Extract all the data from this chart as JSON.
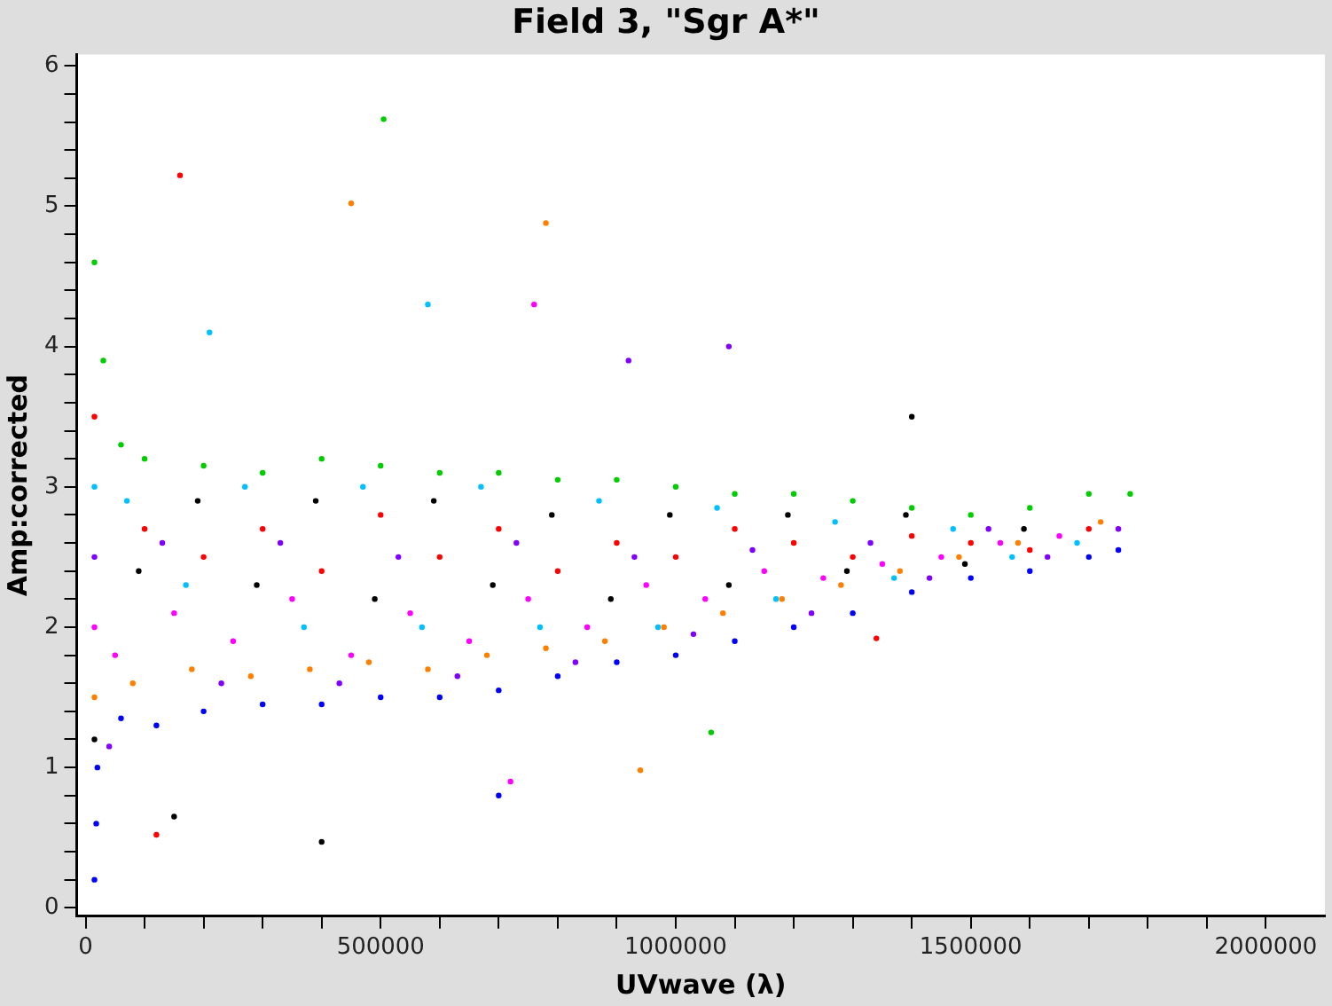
{
  "chart_data": {
    "type": "scatter",
    "title": "Field 3, \"Sgr A*\"",
    "xlabel": "UVwave (λ)",
    "ylabel": "Amp:corrected",
    "xlim": [
      -15000,
      2100000
    ],
    "xticks": [
      0,
      {
        "value": 100000,
        "label": null
      },
      {
        "value": 200000,
        "label": null
      },
      {
        "value": 300000,
        "label": null
      },
      {
        "value": 400000,
        "label": null
      },
      500000,
      {
        "value": 600000,
        "label": null
      },
      {
        "value": 700000,
        "label": null
      },
      {
        "value": 800000,
        "label": null
      },
      {
        "value": 900000,
        "label": null
      },
      1000000,
      {
        "value": 1100000,
        "label": null
      },
      {
        "value": 1200000,
        "label": null
      },
      {
        "value": 1300000,
        "label": null
      },
      {
        "value": 1400000,
        "label": null
      },
      1500000,
      {
        "value": 1600000,
        "label": null
      },
      {
        "value": 1700000,
        "label": null
      },
      {
        "value": 1800000,
        "label": null
      },
      {
        "value": 1900000,
        "label": null
      },
      2000000
    ],
    "ylim": [
      -0.06,
      6.08
    ],
    "yticks": [
      0,
      {
        "value": 0.2,
        "label": null
      },
      {
        "value": 0.4,
        "label": null
      },
      {
        "value": 0.6,
        "label": null
      },
      {
        "value": 0.8,
        "label": null
      },
      1,
      {
        "value": 1.2,
        "label": null
      },
      {
        "value": 1.4,
        "label": null
      },
      {
        "value": 1.6,
        "label": null
      },
      {
        "value": 1.8,
        "label": null
      },
      2,
      {
        "value": 2.2,
        "label": null
      },
      {
        "value": 2.4,
        "label": null
      },
      {
        "value": 2.6,
        "label": null
      },
      {
        "value": 2.8,
        "label": null
      },
      3,
      {
        "value": 3.2,
        "label": null
      },
      {
        "value": 3.4,
        "label": null
      },
      {
        "value": 3.6,
        "label": null
      },
      {
        "value": 3.8,
        "label": null
      },
      4,
      {
        "value": 4.2,
        "label": null
      },
      {
        "value": 4.4,
        "label": null
      },
      {
        "value": 4.6,
        "label": null
      },
      {
        "value": 4.8,
        "label": null
      },
      5,
      {
        "value": 5.2,
        "label": null
      },
      {
        "value": 5.4,
        "label": null
      },
      {
        "value": 5.6,
        "label": null
      },
      {
        "value": 5.8,
        "label": null
      },
      6
    ],
    "grid": false,
    "legend": false,
    "marker": "circle",
    "series": [
      {
        "color": "#0000ff",
        "x": [
          15000,
          18000,
          20000,
          60000,
          120000,
          200000,
          300000,
          400000,
          500000,
          600000,
          700000,
          800000,
          900000,
          1000000,
          1100000,
          1200000,
          1300000,
          1400000,
          1500000,
          1600000,
          1700000,
          1750000,
          700000
        ],
        "values": [
          0.2,
          0.6,
          1.0,
          1.35,
          1.3,
          1.4,
          1.45,
          1.45,
          1.5,
          1.5,
          1.55,
          1.65,
          1.75,
          1.8,
          1.9,
          2.0,
          2.1,
          2.25,
          2.35,
          2.4,
          2.5,
          2.55,
          0.8
        ]
      },
      {
        "color": "#00cc00",
        "x": [
          15000,
          30000,
          60000,
          100000,
          200000,
          300000,
          400000,
          500000,
          600000,
          700000,
          800000,
          900000,
          1000000,
          1100000,
          1200000,
          1300000,
          1400000,
          1500000,
          1600000,
          1700000,
          1770000,
          505000,
          1060000
        ],
        "values": [
          4.6,
          3.9,
          3.3,
          3.2,
          3.15,
          3.1,
          3.2,
          3.15,
          3.1,
          3.1,
          3.05,
          3.05,
          3.0,
          2.95,
          2.95,
          2.9,
          2.85,
          2.8,
          2.85,
          2.95,
          2.95,
          5.62,
          1.25
        ]
      },
      {
        "color": "#ff0000",
        "x": [
          15000,
          100000,
          200000,
          300000,
          400000,
          500000,
          600000,
          700000,
          800000,
          900000,
          1000000,
          1100000,
          1200000,
          1300000,
          1400000,
          1500000,
          1600000,
          1700000,
          160000,
          120000,
          1340000
        ],
        "values": [
          3.5,
          2.7,
          2.5,
          2.7,
          2.4,
          2.8,
          2.5,
          2.7,
          2.4,
          2.6,
          2.5,
          2.7,
          2.6,
          2.5,
          2.65,
          2.6,
          2.55,
          2.7,
          5.22,
          0.52,
          1.92
        ]
      },
      {
        "color": "#ff00ff",
        "x": [
          15000,
          50000,
          150000,
          250000,
          350000,
          450000,
          550000,
          650000,
          750000,
          850000,
          950000,
          1050000,
          1150000,
          1250000,
          1350000,
          1450000,
          1550000,
          1650000,
          760000,
          720000
        ],
        "values": [
          2.0,
          1.8,
          2.1,
          1.9,
          2.2,
          1.8,
          2.1,
          1.9,
          2.2,
          2.0,
          2.3,
          2.2,
          2.4,
          2.35,
          2.45,
          2.5,
          2.6,
          2.65,
          4.3,
          0.9
        ]
      },
      {
        "color": "#ff8000",
        "x": [
          15000,
          80000,
          180000,
          280000,
          380000,
          480000,
          580000,
          680000,
          780000,
          880000,
          980000,
          1080000,
          1180000,
          1280000,
          1380000,
          1480000,
          1580000,
          1720000,
          450000,
          780000,
          940000
        ],
        "values": [
          1.5,
          1.6,
          1.7,
          1.65,
          1.7,
          1.75,
          1.7,
          1.8,
          1.85,
          1.9,
          2.0,
          2.1,
          2.2,
          2.3,
          2.4,
          2.5,
          2.6,
          2.75,
          5.02,
          4.88,
          0.98
        ]
      },
      {
        "color": "#000000",
        "x": [
          15000,
          90000,
          190000,
          290000,
          390000,
          490000,
          590000,
          690000,
          790000,
          890000,
          990000,
          1090000,
          1190000,
          1290000,
          1390000,
          1490000,
          1590000,
          400000,
          150000,
          1400000
        ],
        "values": [
          1.2,
          2.4,
          2.9,
          2.3,
          2.9,
          2.2,
          2.9,
          2.3,
          2.8,
          2.2,
          2.8,
          2.3,
          2.8,
          2.4,
          2.8,
          2.45,
          2.7,
          0.47,
          0.65,
          3.5
        ]
      },
      {
        "color": "#00c0ff",
        "x": [
          15000,
          70000,
          170000,
          270000,
          370000,
          470000,
          570000,
          670000,
          770000,
          870000,
          970000,
          1070000,
          1170000,
          1270000,
          1370000,
          1470000,
          1570000,
          1680000,
          210000,
          580000
        ],
        "values": [
          3.0,
          2.9,
          2.3,
          3.0,
          2.0,
          3.0,
          2.0,
          3.0,
          2.0,
          2.9,
          2.0,
          2.85,
          2.2,
          2.75,
          2.35,
          2.7,
          2.5,
          2.6,
          4.1,
          4.3
        ]
      },
      {
        "color": "#8000ff",
        "x": [
          15000,
          40000,
          130000,
          230000,
          330000,
          430000,
          530000,
          630000,
          730000,
          830000,
          930000,
          1030000,
          1130000,
          1230000,
          1330000,
          1430000,
          1530000,
          1630000,
          1750000,
          1090000,
          920000
        ],
        "values": [
          2.5,
          1.15,
          2.6,
          1.6,
          2.6,
          1.6,
          2.5,
          1.65,
          2.6,
          1.75,
          2.5,
          1.95,
          2.55,
          2.1,
          2.6,
          2.35,
          2.7,
          2.5,
          2.7,
          4.0,
          3.9
        ]
      }
    ]
  }
}
